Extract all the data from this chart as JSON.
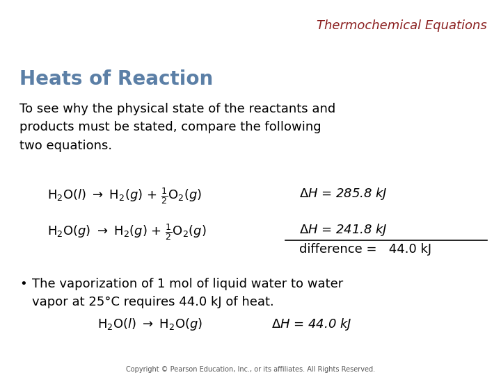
{
  "bg_color": "#ffffff",
  "title": "Thermochemical Equations",
  "title_color": "#8B2020",
  "title_fontsize": 13,
  "heading": "Heats of Reaction",
  "heading_color": "#5B7FA6",
  "heading_fontsize": 20,
  "body_fontsize": 13,
  "eq_fontsize": 13,
  "copyright": "Copyright © Pearson Education, Inc., or its affiliates. All Rights Reserved.",
  "copyright_fontsize": 7
}
